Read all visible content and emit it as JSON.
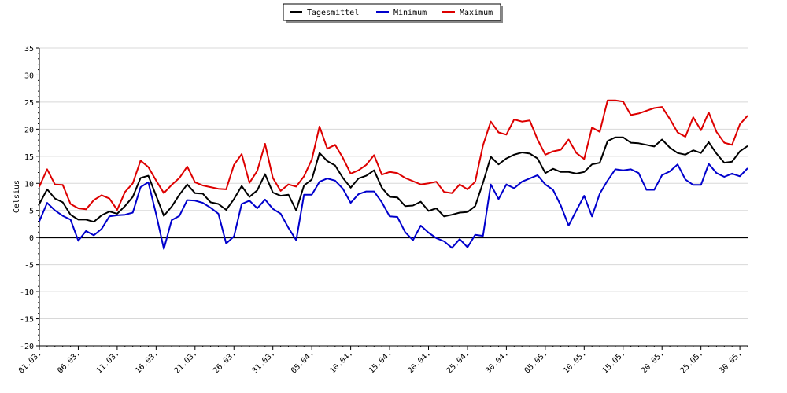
{
  "chart_data": {
    "type": "line",
    "title": "",
    "xlabel": "",
    "ylabel": "Celsius",
    "ylim": [
      -20,
      35
    ],
    "yticks": [
      35,
      30,
      25,
      20,
      15,
      10,
      5,
      0,
      -5,
      -10,
      -15,
      -20
    ],
    "grid": true,
    "legend_position": "top-center",
    "x": [
      "01.03.",
      "02.03.",
      "03.03.",
      "04.03.",
      "05.03.",
      "06.03.",
      "07.03.",
      "08.03.",
      "09.03.",
      "10.03.",
      "11.03.",
      "12.03.",
      "13.03.",
      "14.03.",
      "15.03.",
      "16.03.",
      "17.03.",
      "18.03.",
      "19.03.",
      "20.03.",
      "21.03.",
      "22.03.",
      "23.03.",
      "24.03.",
      "25.03.",
      "26.03.",
      "27.03.",
      "28.03.",
      "29.03.",
      "30.03.",
      "31.03.",
      "01.04.",
      "02.04.",
      "03.04.",
      "04.04.",
      "05.04.",
      "06.04.",
      "07.04.",
      "08.04.",
      "09.04.",
      "10.04.",
      "11.04.",
      "12.04.",
      "13.04.",
      "14.04.",
      "15.04.",
      "16.04.",
      "17.04.",
      "18.04.",
      "19.04.",
      "20.04.",
      "21.04.",
      "22.04.",
      "23.04.",
      "24.04.",
      "25.04.",
      "26.04.",
      "27.04.",
      "28.04.",
      "29.04.",
      "30.04.",
      "01.05.",
      "02.05.",
      "03.05.",
      "04.05.",
      "05.05.",
      "06.05.",
      "07.05.",
      "08.05.",
      "09.05.",
      "10.05.",
      "11.05.",
      "12.05.",
      "13.05.",
      "14.05.",
      "15.05.",
      "16.05.",
      "17.05.",
      "18.05.",
      "19.05.",
      "20.05.",
      "21.05.",
      "22.05.",
      "23.05.",
      "24.05.",
      "25.05.",
      "26.05.",
      "27.05.",
      "28.05.",
      "29.05.",
      "30.05.",
      "31.05."
    ],
    "xtick_labels": [
      "01.03.",
      "06.03.",
      "11.03.",
      "16.03.",
      "21.03.",
      "26.03.",
      "31.03.",
      "05.04.",
      "10.04.",
      "15.04.",
      "20.04.",
      "25.04.",
      "30.04.",
      "05.05.",
      "10.05.",
      "15.05.",
      "20.05.",
      "25.05.",
      "30.05."
    ],
    "series": [
      {
        "name": "Tagesmittel",
        "color": "#000000",
        "values": [
          6.2,
          8.9,
          7.2,
          6.5,
          4.2,
          3.3,
          3.3,
          2.9,
          4.1,
          4.8,
          4.4,
          5.8,
          7.5,
          11.0,
          11.4,
          7.7,
          4.0,
          5.7,
          7.9,
          9.8,
          8.2,
          8.1,
          6.5,
          6.2,
          5.1,
          7.1,
          9.5,
          7.5,
          8.7,
          11.7,
          8.3,
          7.7,
          7.9,
          5.0,
          9.6,
          10.7,
          15.6,
          14.1,
          13.3,
          11.0,
          9.2,
          10.9,
          11.4,
          12.4,
          9.2,
          7.5,
          7.4,
          5.8,
          5.9,
          6.6,
          4.9,
          5.4,
          3.9,
          4.2,
          4.6,
          4.7,
          5.8,
          10.1,
          14.9,
          13.5,
          14.6,
          15.3,
          15.7,
          15.5,
          14.6,
          11.9,
          12.7,
          12.1,
          12.1,
          11.8,
          12.1,
          13.5,
          13.8,
          17.8,
          18.5,
          18.5,
          17.5,
          17.4,
          17.1,
          16.8,
          18.1,
          16.6,
          15.6,
          15.3,
          16.1,
          15.6,
          17.6,
          15.5,
          13.8,
          14.0,
          15.9,
          16.9
        ]
      },
      {
        "name": "Minimum",
        "color": "#0000cc",
        "values": [
          3.0,
          6.4,
          5.0,
          4.0,
          3.3,
          -0.6,
          1.2,
          0.4,
          1.6,
          3.9,
          4.1,
          4.2,
          4.6,
          9.3,
          10.2,
          4.3,
          -2.1,
          3.2,
          4.0,
          6.9,
          6.8,
          6.4,
          5.5,
          4.4,
          -1.1,
          0.2,
          6.2,
          6.8,
          5.4,
          7.0,
          5.3,
          4.4,
          1.8,
          -0.5,
          7.9,
          7.9,
          10.3,
          10.9,
          10.5,
          9.0,
          6.4,
          8.0,
          8.5,
          8.5,
          6.5,
          3.9,
          3.8,
          1.0,
          -0.5,
          2.2,
          0.9,
          -0.1,
          -0.7,
          -1.9,
          -0.3,
          -1.8,
          0.5,
          0.3,
          9.8,
          7.1,
          9.8,
          9.1,
          10.3,
          10.9,
          11.5,
          9.8,
          8.8,
          5.9,
          2.2,
          5.0,
          7.7,
          3.9,
          8.1,
          10.5,
          12.6,
          12.4,
          12.6,
          11.9,
          8.8,
          8.8,
          11.5,
          12.2,
          13.5,
          10.7,
          9.7,
          9.7,
          13.6,
          11.9,
          11.2,
          11.8,
          11.3,
          12.8
        ]
      },
      {
        "name": "Maximum",
        "color": "#dd0000",
        "values": [
          9.4,
          12.6,
          9.8,
          9.7,
          6.2,
          5.4,
          5.2,
          6.9,
          7.8,
          7.2,
          5.1,
          8.4,
          10.0,
          14.2,
          13.0,
          10.5,
          8.2,
          9.7,
          11.0,
          13.1,
          10.2,
          9.6,
          9.3,
          9.0,
          8.9,
          13.4,
          15.4,
          10.1,
          12.3,
          17.3,
          11.0,
          8.6,
          9.8,
          9.4,
          11.3,
          14.4,
          20.5,
          16.4,
          17.1,
          14.7,
          11.8,
          12.4,
          13.4,
          15.2,
          11.6,
          12.1,
          11.9,
          11.0,
          10.4,
          9.8,
          10.0,
          10.3,
          8.4,
          8.2,
          9.8,
          8.9,
          10.3,
          17.0,
          21.4,
          19.4,
          19.0,
          21.8,
          21.4,
          21.6,
          18.1,
          15.3,
          15.9,
          16.2,
          18.1,
          15.6,
          14.5,
          20.3,
          19.5,
          25.3,
          25.3,
          25.1,
          22.6,
          22.9,
          23.4,
          23.9,
          24.1,
          21.9,
          19.4,
          18.6,
          22.2,
          19.8,
          23.1,
          19.5,
          17.5,
          17.1,
          20.9,
          22.5
        ]
      }
    ]
  }
}
